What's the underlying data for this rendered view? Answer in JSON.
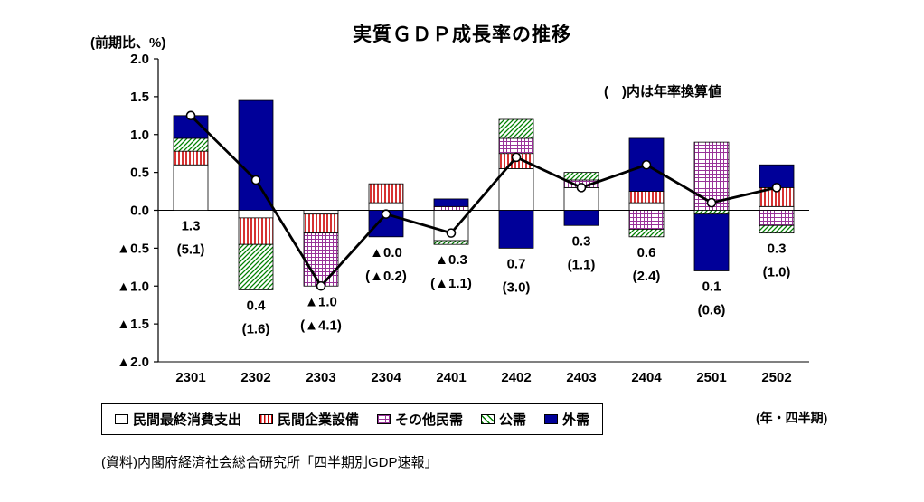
{
  "title": "実質ＧＤＰ成長率の推移",
  "y_axis_unit": "(前期比、%)",
  "x_axis_unit": "(年・四半期)",
  "annotation": "(　)内は年率換算値",
  "source": "(資料)内閣府経済社会総合研究所「四半期別GDP速報」",
  "colors": {
    "navy": "#000099",
    "red": "#cc0000",
    "purple": "#993399",
    "green": "#008000",
    "line": "#000000"
  },
  "chart_data": {
    "type": "bar",
    "subtype": "stacked-bars-with-total-line",
    "title": "実質ＧＤＰ成長率の推移",
    "ylabel": "(前期比、%)",
    "xlabel": "(年・四半期)",
    "ylim": [
      -2.0,
      2.0
    ],
    "yticks": [
      "2.0",
      "1.5",
      "1.0",
      "0.5",
      "0.0",
      "▲0.5",
      "▲1.0",
      "▲1.5",
      "▲2.0"
    ],
    "grid": false,
    "legend_position": "bottom",
    "note": "(　)内は年率換算値",
    "categories": [
      "2301",
      "2302",
      "2303",
      "2304",
      "2401",
      "2402",
      "2403",
      "2404",
      "2501",
      "2502"
    ],
    "series": [
      {
        "name": "民間最終消費支出",
        "pattern": "white",
        "values": [
          0.6,
          -0.1,
          -0.05,
          0.1,
          -0.4,
          0.55,
          0.3,
          0.1,
          0.0,
          0.05
        ]
      },
      {
        "name": "民間企業設備",
        "pattern": "red-vertical-stripes",
        "values": [
          0.18,
          -0.35,
          -0.25,
          0.25,
          0.0,
          0.2,
          0.0,
          0.15,
          0.0,
          0.25
        ]
      },
      {
        "name": "その他民需",
        "pattern": "purple-grid",
        "values": [
          0.0,
          0.0,
          -0.7,
          0.0,
          0.05,
          0.2,
          0.1,
          -0.25,
          0.9,
          -0.2
        ]
      },
      {
        "name": "公需",
        "pattern": "green-diagonal",
        "values": [
          0.17,
          -0.6,
          0.0,
          0.0,
          -0.05,
          0.25,
          0.1,
          -0.1,
          -0.05,
          -0.1
        ]
      },
      {
        "name": "外需",
        "pattern": "navy-solid",
        "values": [
          0.3,
          1.45,
          0.0,
          -0.35,
          0.1,
          -0.5,
          -0.2,
          0.7,
          -0.75,
          0.3
        ]
      }
    ],
    "line": {
      "name": "実質GDP成長率(前期比)",
      "values": [
        1.25,
        0.4,
        -1.0,
        -0.05,
        -0.3,
        0.7,
        0.3,
        0.6,
        0.1,
        0.3
      ]
    },
    "labels": [
      {
        "qoq": "1.3",
        "annualized": "(5.1)"
      },
      {
        "qoq": "0.4",
        "annualized": "(1.6)"
      },
      {
        "qoq": "▲1.0",
        "annualized": "(▲4.1)"
      },
      {
        "qoq": "▲0.0",
        "annualized": "(▲0.2)"
      },
      {
        "qoq": "▲0.3",
        "annualized": "(▲1.1)"
      },
      {
        "qoq": "0.7",
        "annualized": "(3.0)"
      },
      {
        "qoq": "0.3",
        "annualized": "(1.1)"
      },
      {
        "qoq": "0.6",
        "annualized": "(2.4)"
      },
      {
        "qoq": "0.1",
        "annualized": "(0.6)"
      },
      {
        "qoq": "0.3",
        "annualized": "(1.0)"
      }
    ]
  }
}
